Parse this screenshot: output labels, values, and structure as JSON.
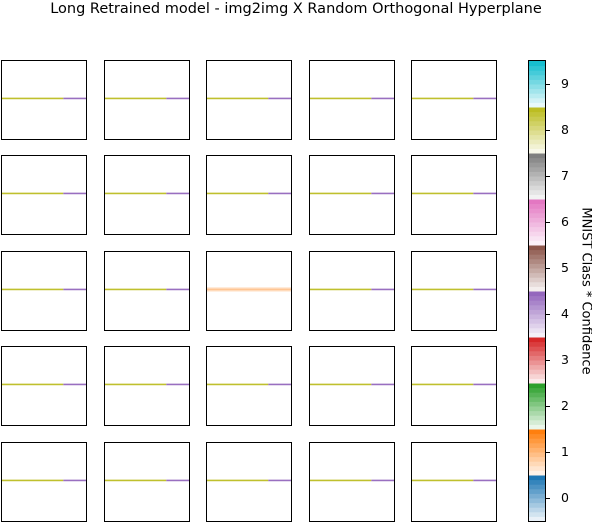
{
  "chart_data": {
    "type": "heatmap",
    "title": "Long Retrained model - img2img X Random Orthogonal Hyperplane",
    "grid": {
      "rows": 5,
      "cols": 5
    },
    "panels_note_classes": "each panel shows a thin horizontal band; left portion class 8, right portion class 4",
    "panels": [
      {
        "row": 0,
        "col": 0,
        "left_class": 8,
        "right_class": 4,
        "split": 0.73,
        "band_y": 0.48
      },
      {
        "row": 0,
        "col": 1,
        "left_class": 8,
        "right_class": 4,
        "split": 0.73,
        "band_y": 0.48
      },
      {
        "row": 0,
        "col": 2,
        "left_class": 8,
        "right_class": 4,
        "split": 0.73,
        "band_y": 0.48
      },
      {
        "row": 0,
        "col": 3,
        "left_class": 8,
        "right_class": 4,
        "split": 0.73,
        "band_y": 0.48
      },
      {
        "row": 0,
        "col": 4,
        "left_class": 8,
        "right_class": 4,
        "split": 0.73,
        "band_y": 0.48
      },
      {
        "row": 1,
        "col": 0,
        "left_class": 8,
        "right_class": 4,
        "split": 0.73,
        "band_y": 0.48
      },
      {
        "row": 1,
        "col": 1,
        "left_class": 8,
        "right_class": 4,
        "split": 0.73,
        "band_y": 0.48
      },
      {
        "row": 1,
        "col": 2,
        "left_class": 8,
        "right_class": 4,
        "split": 0.73,
        "band_y": 0.48
      },
      {
        "row": 1,
        "col": 3,
        "left_class": 8,
        "right_class": 4,
        "split": 0.73,
        "band_y": 0.48
      },
      {
        "row": 1,
        "col": 4,
        "left_class": 8,
        "right_class": 4,
        "split": 0.73,
        "band_y": 0.48
      },
      {
        "row": 2,
        "col": 0,
        "left_class": 8,
        "right_class": 4,
        "split": 0.73,
        "band_y": 0.48
      },
      {
        "row": 2,
        "col": 1,
        "left_class": 8,
        "right_class": 4,
        "split": 0.73,
        "band_y": 0.48
      },
      {
        "row": 2,
        "col": 2,
        "left_class": 1,
        "right_class": 1,
        "split": 0.73,
        "band_y": 0.48,
        "wide": true
      },
      {
        "row": 2,
        "col": 3,
        "left_class": 8,
        "right_class": 4,
        "split": 0.73,
        "band_y": 0.48
      },
      {
        "row": 2,
        "col": 4,
        "left_class": 8,
        "right_class": 4,
        "split": 0.73,
        "band_y": 0.48
      },
      {
        "row": 3,
        "col": 0,
        "left_class": 8,
        "right_class": 4,
        "split": 0.73,
        "band_y": 0.48
      },
      {
        "row": 3,
        "col": 1,
        "left_class": 8,
        "right_class": 4,
        "split": 0.73,
        "band_y": 0.48
      },
      {
        "row": 3,
        "col": 2,
        "left_class": 8,
        "right_class": 4,
        "split": 0.73,
        "band_y": 0.48
      },
      {
        "row": 3,
        "col": 3,
        "left_class": 8,
        "right_class": 4,
        "split": 0.73,
        "band_y": 0.48
      },
      {
        "row": 3,
        "col": 4,
        "left_class": 8,
        "right_class": 4,
        "split": 0.73,
        "band_y": 0.48
      },
      {
        "row": 4,
        "col": 0,
        "left_class": 8,
        "right_class": 4,
        "split": 0.73,
        "band_y": 0.48
      },
      {
        "row": 4,
        "col": 1,
        "left_class": 8,
        "right_class": 4,
        "split": 0.73,
        "band_y": 0.48
      },
      {
        "row": 4,
        "col": 2,
        "left_class": 8,
        "right_class": 4,
        "split": 0.73,
        "band_y": 0.48
      },
      {
        "row": 4,
        "col": 3,
        "left_class": 8,
        "right_class": 4,
        "split": 0.73,
        "band_y": 0.48
      },
      {
        "row": 4,
        "col": 4,
        "left_class": 8,
        "right_class": 4,
        "split": 0.73,
        "band_y": 0.48
      }
    ],
    "colorbar": {
      "label": "MNIST Class * Confidence",
      "range": [
        -0.5,
        9.5
      ],
      "ticks": [
        0,
        1,
        2,
        3,
        4,
        5,
        6,
        7,
        8,
        9
      ],
      "tick_labels": [
        "0",
        "1",
        "2",
        "3",
        "4",
        "5",
        "6",
        "7",
        "8",
        "9"
      ],
      "class_colors": [
        "#1f77b4",
        "#ff7f0e",
        "#2ca02c",
        "#d62728",
        "#9467bd",
        "#8c564b",
        "#e377c2",
        "#7f7f7f",
        "#bcbd22",
        "#17becf"
      ]
    }
  }
}
